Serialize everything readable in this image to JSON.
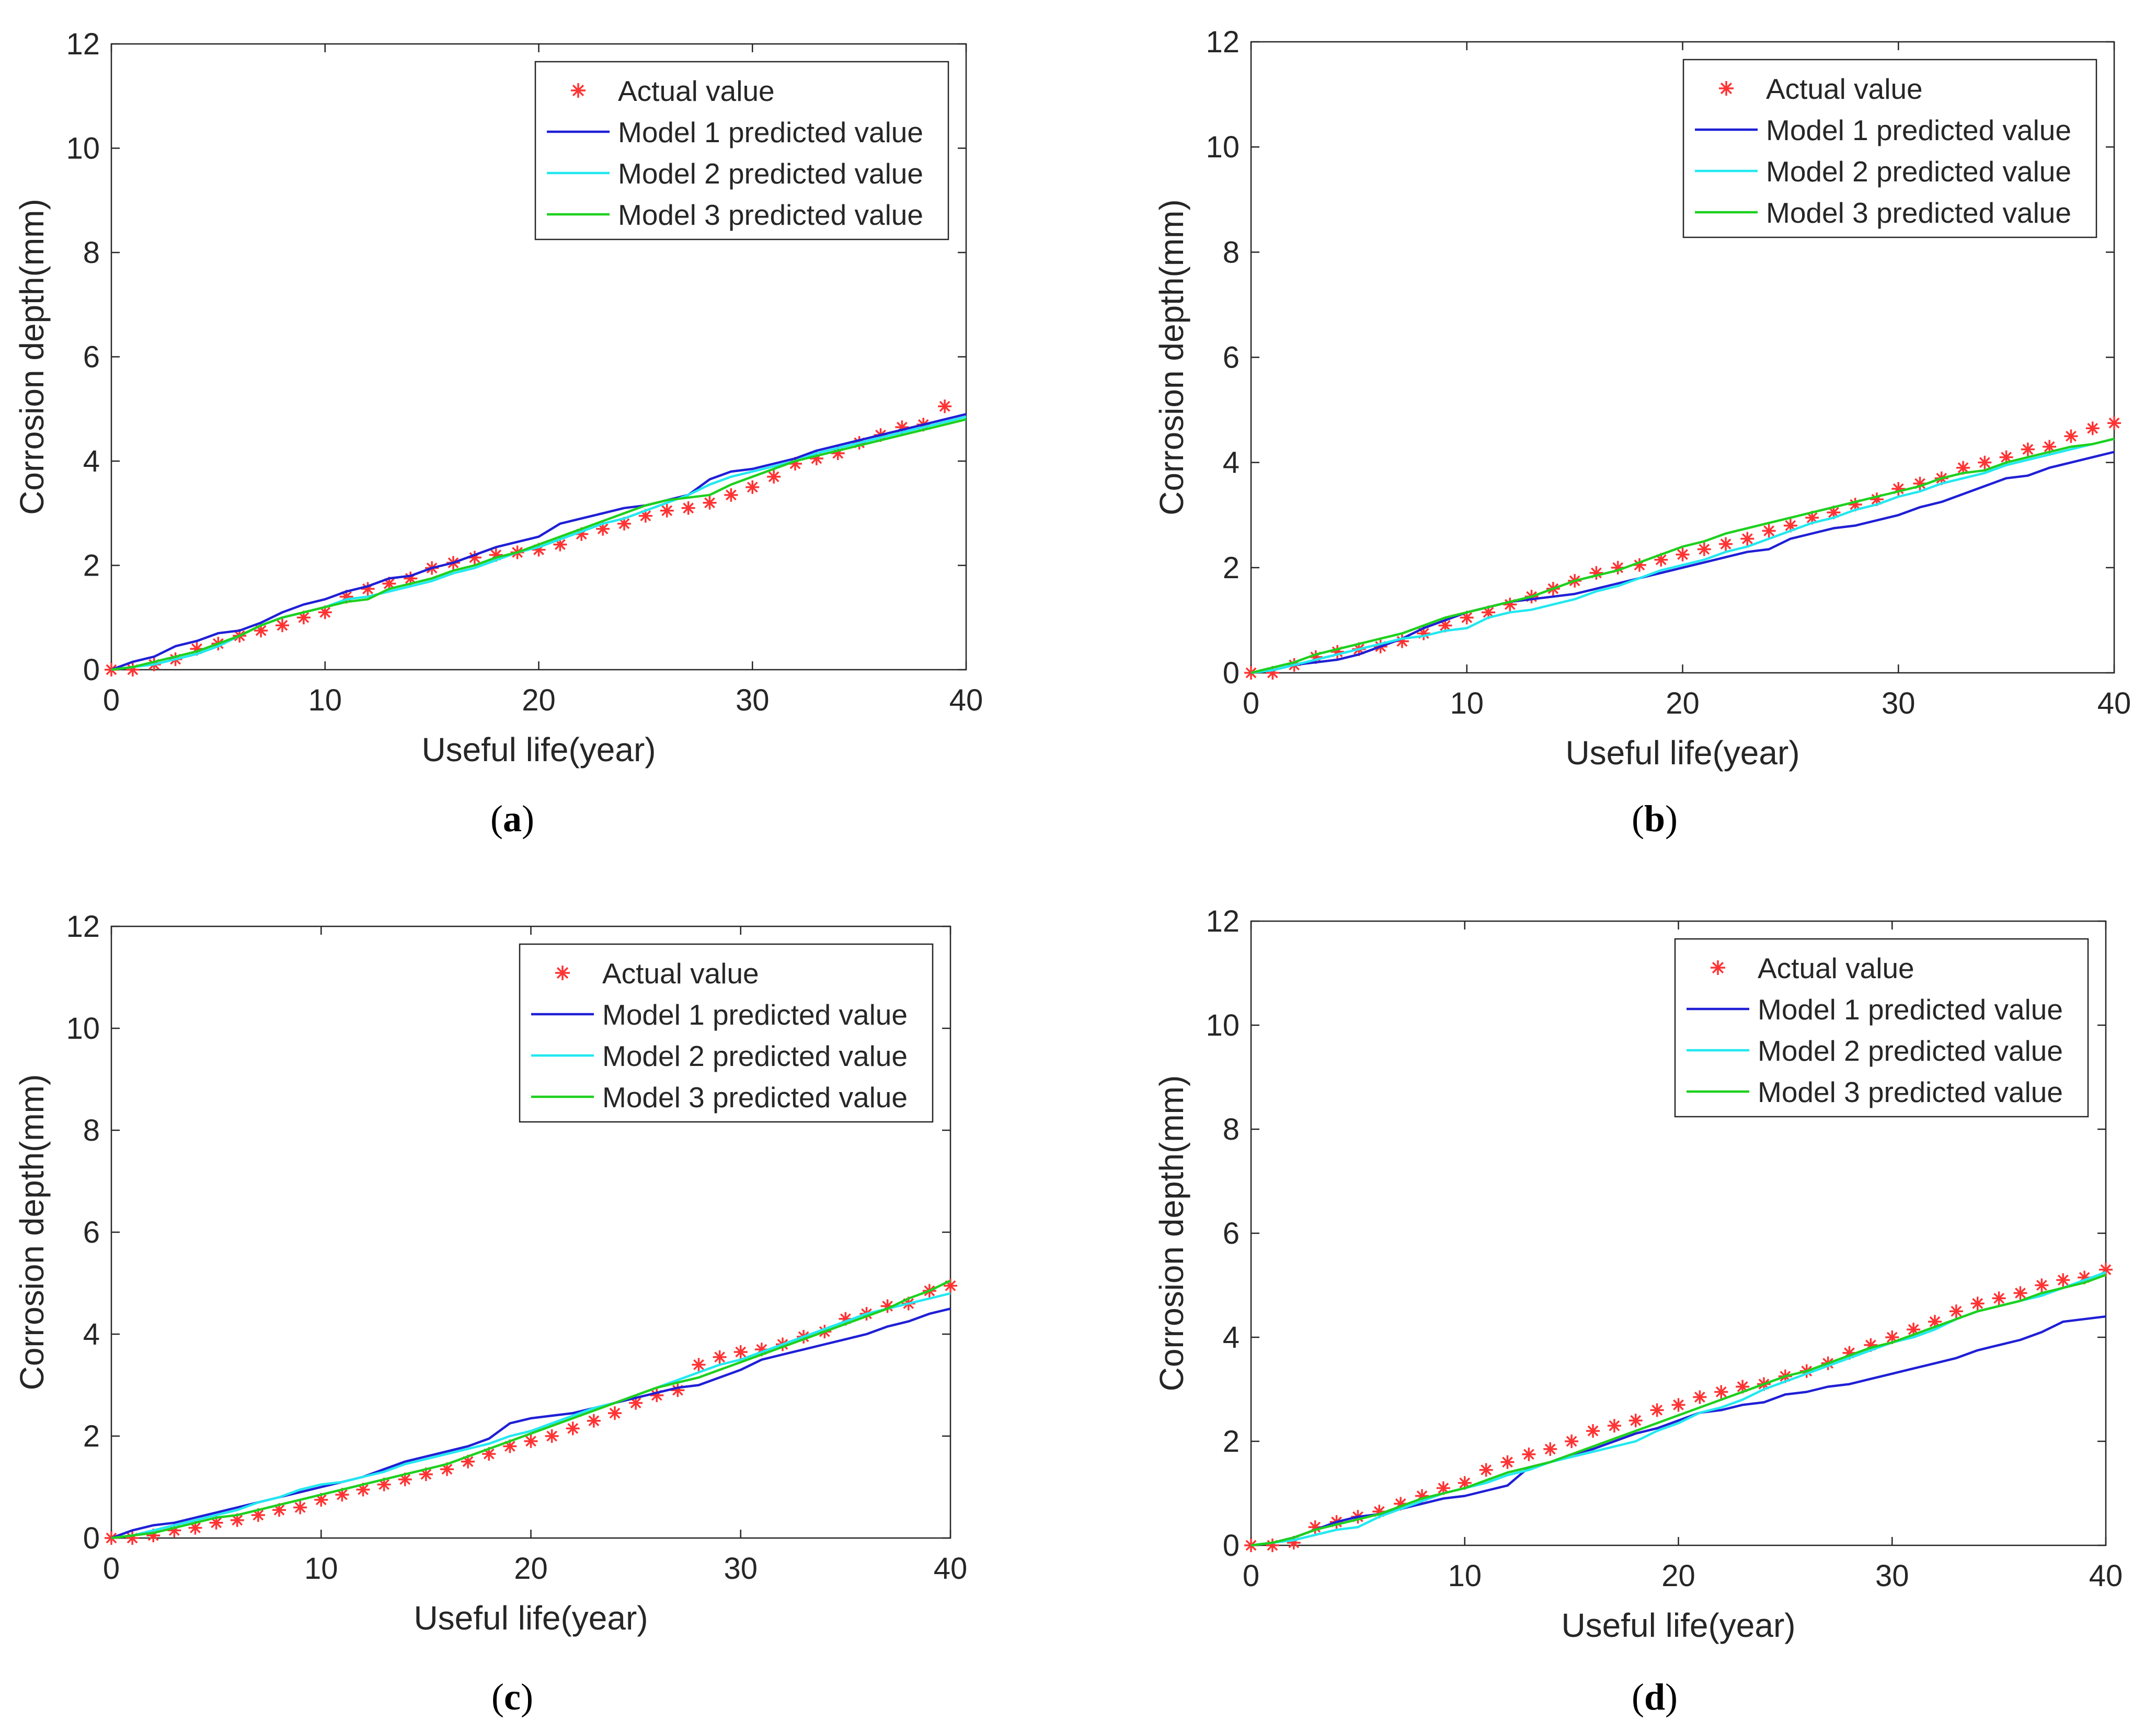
{
  "figure": {
    "panels": [
      {
        "id": "a",
        "label_open": "(",
        "label_letter": "a",
        "label_close": ")"
      },
      {
        "id": "b",
        "label_open": "(",
        "label_letter": "b",
        "label_close": ")"
      },
      {
        "id": "c",
        "label_open": "(",
        "label_letter": "c",
        "label_close": ")"
      },
      {
        "id": "d",
        "label_open": "(",
        "label_letter": "d",
        "label_close": ")"
      }
    ]
  },
  "colors": {
    "actual": "#ff3333",
    "model1": "#1f1fd6",
    "model2": "#22e8f0",
    "model3": "#1ed01e",
    "axis": "#262626"
  },
  "chart_data": [
    {
      "panel": "a",
      "type": "line",
      "xlabel": "Useful life(year)",
      "ylabel": "Corrosion depth(mm)",
      "xlim": [
        0,
        40
      ],
      "ylim": [
        0,
        12
      ],
      "xticks": [
        0,
        10,
        20,
        30,
        40
      ],
      "yticks": [
        0,
        2,
        4,
        6,
        8,
        10,
        12
      ],
      "legend_position": "top-right",
      "x": [
        0,
        1,
        2,
        3,
        4,
        5,
        6,
        7,
        8,
        9,
        10,
        11,
        12,
        13,
        14,
        15,
        16,
        17,
        18,
        19,
        20,
        21,
        22,
        23,
        24,
        25,
        26,
        27,
        28,
        29,
        30,
        31,
        32,
        33,
        34,
        35,
        36,
        37,
        38,
        39,
        40
      ],
      "series": [
        {
          "name": "Actual value",
          "style": "markers",
          "color_key": "actual",
          "values": [
            0,
            0,
            0.1,
            0.2,
            0.4,
            0.5,
            0.65,
            0.75,
            0.85,
            1.0,
            1.1,
            1.4,
            1.55,
            1.65,
            1.75,
            1.95,
            2.05,
            2.15,
            2.2,
            2.25,
            2.3,
            2.4,
            2.6,
            2.7,
            2.8,
            2.95,
            3.05,
            3.1,
            3.2,
            3.35,
            3.5,
            3.7,
            3.95,
            4.05,
            4.15,
            4.35,
            4.5,
            4.65,
            4.7,
            5.05,
            null
          ]
        },
        {
          "name": "Model 1 predicted value",
          "style": "line",
          "color_key": "model1",
          "values": [
            0,
            0.15,
            0.25,
            0.45,
            0.55,
            0.7,
            0.75,
            0.9,
            1.1,
            1.25,
            1.35,
            1.5,
            1.6,
            1.75,
            1.8,
            1.95,
            2.05,
            2.2,
            2.35,
            2.45,
            2.55,
            2.8,
            2.9,
            3.0,
            3.1,
            3.15,
            3.25,
            3.35,
            3.65,
            3.8,
            3.85,
            3.95,
            4.05,
            4.2,
            4.3,
            4.4,
            4.5,
            4.6,
            4.7,
            4.8,
            4.9
          ]
        },
        {
          "name": "Model 2 predicted value",
          "style": "line",
          "color_key": "model2",
          "values": [
            0,
            0.05,
            0.1,
            0.2,
            0.3,
            0.45,
            0.65,
            0.85,
            1.0,
            1.1,
            1.2,
            1.35,
            1.4,
            1.5,
            1.6,
            1.7,
            1.85,
            1.95,
            2.1,
            2.25,
            2.35,
            2.5,
            2.65,
            2.8,
            2.9,
            3.05,
            3.2,
            3.35,
            3.55,
            3.7,
            3.8,
            3.9,
            4.0,
            4.15,
            4.25,
            4.35,
            4.45,
            4.55,
            4.65,
            4.75,
            4.85
          ]
        },
        {
          "name": "Model 3 predicted value",
          "style": "line",
          "color_key": "model3",
          "values": [
            0,
            0.05,
            0.15,
            0.25,
            0.35,
            0.5,
            0.65,
            0.85,
            1.0,
            1.1,
            1.2,
            1.3,
            1.35,
            1.55,
            1.65,
            1.75,
            1.9,
            2.0,
            2.15,
            2.25,
            2.4,
            2.55,
            2.7,
            2.85,
            3.0,
            3.15,
            3.25,
            3.3,
            3.35,
            3.55,
            3.7,
            3.85,
            4.0,
            4.1,
            4.2,
            4.3,
            4.4,
            4.5,
            4.6,
            4.7,
            4.8
          ]
        }
      ]
    },
    {
      "panel": "b",
      "type": "line",
      "xlabel": "Useful life(year)",
      "ylabel": "Corrosion depth(mm)",
      "xlim": [
        0,
        40
      ],
      "ylim": [
        0,
        12
      ],
      "xticks": [
        0,
        10,
        20,
        30,
        40
      ],
      "yticks": [
        0,
        2,
        4,
        6,
        8,
        10,
        12
      ],
      "legend_position": "top-right",
      "x": [
        0,
        1,
        2,
        3,
        4,
        5,
        6,
        7,
        8,
        9,
        10,
        11,
        12,
        13,
        14,
        15,
        16,
        17,
        18,
        19,
        20,
        21,
        22,
        23,
        24,
        25,
        26,
        27,
        28,
        29,
        30,
        31,
        32,
        33,
        34,
        35,
        36,
        37,
        38,
        39,
        40
      ],
      "series": [
        {
          "name": "Actual value",
          "style": "markers",
          "color_key": "actual",
          "values": [
            0,
            0,
            0.15,
            0.3,
            0.4,
            0.45,
            0.5,
            0.6,
            0.75,
            0.9,
            1.05,
            1.15,
            1.3,
            1.45,
            1.6,
            1.75,
            1.9,
            2.0,
            2.05,
            2.15,
            2.25,
            2.35,
            2.45,
            2.55,
            2.7,
            2.8,
            2.95,
            3.05,
            3.2,
            3.3,
            3.5,
            3.6,
            3.7,
            3.9,
            4.0,
            4.1,
            4.25,
            4.3,
            4.5,
            4.65,
            4.75
          ]
        },
        {
          "name": "Model 1 predicted value",
          "style": "line",
          "color_key": "model1",
          "values": [
            0,
            0.05,
            0.15,
            0.2,
            0.25,
            0.35,
            0.5,
            0.65,
            0.85,
            1.0,
            1.15,
            1.25,
            1.35,
            1.4,
            1.45,
            1.5,
            1.6,
            1.7,
            1.8,
            1.9,
            2.0,
            2.1,
            2.2,
            2.3,
            2.35,
            2.55,
            2.65,
            2.75,
            2.8,
            2.9,
            3.0,
            3.15,
            3.25,
            3.4,
            3.55,
            3.7,
            3.75,
            3.9,
            4.0,
            4.1,
            4.2
          ]
        },
        {
          "name": "Model 2 predicted value",
          "style": "line",
          "color_key": "model2",
          "values": [
            0,
            0.05,
            0.15,
            0.25,
            0.35,
            0.45,
            0.55,
            0.65,
            0.7,
            0.8,
            0.85,
            1.05,
            1.15,
            1.2,
            1.3,
            1.4,
            1.55,
            1.65,
            1.8,
            1.95,
            2.05,
            2.15,
            2.3,
            2.4,
            2.55,
            2.7,
            2.85,
            2.95,
            3.1,
            3.2,
            3.35,
            3.45,
            3.6,
            3.7,
            3.8,
            3.95,
            4.05,
            4.15,
            4.25,
            4.35,
            4.45
          ]
        },
        {
          "name": "Model 3 predicted value",
          "style": "line",
          "color_key": "model3",
          "values": [
            0,
            0.1,
            0.2,
            0.35,
            0.45,
            0.55,
            0.65,
            0.75,
            0.9,
            1.05,
            1.15,
            1.25,
            1.35,
            1.45,
            1.6,
            1.75,
            1.85,
            1.95,
            2.1,
            2.25,
            2.4,
            2.5,
            2.65,
            2.75,
            2.85,
            2.95,
            3.05,
            3.15,
            3.25,
            3.35,
            3.45,
            3.55,
            3.7,
            3.8,
            3.85,
            4.0,
            4.1,
            4.2,
            4.3,
            4.35,
            4.45
          ]
        }
      ]
    },
    {
      "panel": "c",
      "type": "line",
      "xlabel": "Useful life(year)",
      "ylabel": "Corrosion depth(mm)",
      "xlim": [
        0,
        40
      ],
      "ylim": [
        0,
        12
      ],
      "xticks": [
        0,
        10,
        20,
        30,
        40
      ],
      "yticks": [
        0,
        2,
        4,
        6,
        8,
        10,
        12
      ],
      "legend_position": "top-right",
      "x": [
        0,
        1,
        2,
        3,
        4,
        5,
        6,
        7,
        8,
        9,
        10,
        11,
        12,
        13,
        14,
        15,
        16,
        17,
        18,
        19,
        20,
        21,
        22,
        23,
        24,
        25,
        26,
        27,
        28,
        29,
        30,
        31,
        32,
        33,
        34,
        35,
        36,
        37,
        38,
        39,
        40
      ],
      "series": [
        {
          "name": "Actual value",
          "style": "markers",
          "color_key": "actual",
          "values": [
            0,
            0,
            0.05,
            0.15,
            0.2,
            0.3,
            0.35,
            0.45,
            0.55,
            0.6,
            0.75,
            0.85,
            0.95,
            1.05,
            1.15,
            1.25,
            1.35,
            1.5,
            1.65,
            1.8,
            1.9,
            2.0,
            2.15,
            2.3,
            2.45,
            2.65,
            2.8,
            2.9,
            3.4,
            3.55,
            3.65,
            3.7,
            3.8,
            3.95,
            4.05,
            4.3,
            4.4,
            4.55,
            4.6,
            4.85,
            4.95
          ]
        },
        {
          "name": "Model 1 predicted value",
          "style": "line",
          "color_key": "model1",
          "values": [
            0,
            0.15,
            0.25,
            0.3,
            0.4,
            0.5,
            0.6,
            0.7,
            0.8,
            0.9,
            1.0,
            1.1,
            1.2,
            1.35,
            1.5,
            1.6,
            1.7,
            1.8,
            1.95,
            2.25,
            2.35,
            2.4,
            2.45,
            2.55,
            2.65,
            2.75,
            2.85,
            2.95,
            3.0,
            3.15,
            3.3,
            3.5,
            3.6,
            3.7,
            3.8,
            3.9,
            4.0,
            4.15,
            4.25,
            4.4,
            4.5
          ]
        },
        {
          "name": "Model 2 predicted value",
          "style": "line",
          "color_key": "model2",
          "values": [
            0,
            0.05,
            0.15,
            0.25,
            0.35,
            0.45,
            0.55,
            0.7,
            0.8,
            0.95,
            1.05,
            1.1,
            1.2,
            1.3,
            1.45,
            1.55,
            1.65,
            1.75,
            1.85,
            2.0,
            2.1,
            2.25,
            2.4,
            2.55,
            2.65,
            2.8,
            2.95,
            3.1,
            3.25,
            3.4,
            3.5,
            3.65,
            3.8,
            3.95,
            4.1,
            4.25,
            4.4,
            4.5,
            4.6,
            4.7,
            4.8
          ]
        },
        {
          "name": "Model 3 predicted value",
          "style": "line",
          "color_key": "model3",
          "values": [
            0,
            0.05,
            0.1,
            0.2,
            0.3,
            0.4,
            0.45,
            0.55,
            0.65,
            0.75,
            0.85,
            0.95,
            1.05,
            1.15,
            1.25,
            1.35,
            1.45,
            1.6,
            1.75,
            1.9,
            2.05,
            2.2,
            2.35,
            2.5,
            2.65,
            2.8,
            2.95,
            3.05,
            3.15,
            3.3,
            3.45,
            3.6,
            3.75,
            3.9,
            4.05,
            4.2,
            4.35,
            4.5,
            4.7,
            4.85,
            5.05
          ]
        }
      ]
    },
    {
      "panel": "d",
      "type": "line",
      "xlabel": "Useful life(year)",
      "ylabel": "Corrosion depth(mm)",
      "xlim": [
        0,
        40
      ],
      "ylim": [
        0,
        12
      ],
      "xticks": [
        0,
        10,
        20,
        30,
        40
      ],
      "yticks": [
        0,
        2,
        4,
        6,
        8,
        10,
        12
      ],
      "legend_position": "top-right",
      "x": [
        0,
        1,
        2,
        3,
        4,
        5,
        6,
        7,
        8,
        9,
        10,
        11,
        12,
        13,
        14,
        15,
        16,
        17,
        18,
        19,
        20,
        21,
        22,
        23,
        24,
        25,
        26,
        27,
        28,
        29,
        30,
        31,
        32,
        33,
        34,
        35,
        36,
        37,
        38,
        39,
        40
      ],
      "series": [
        {
          "name": "Actual value",
          "style": "markers",
          "color_key": "actual",
          "values": [
            0,
            0,
            0.05,
            0.35,
            0.45,
            0.55,
            0.65,
            0.8,
            0.95,
            1.1,
            1.2,
            1.45,
            1.6,
            1.75,
            1.85,
            2.0,
            2.2,
            2.3,
            2.4,
            2.6,
            2.7,
            2.85,
            2.95,
            3.05,
            3.1,
            3.25,
            3.35,
            3.5,
            3.7,
            3.85,
            4.0,
            4.15,
            4.3,
            4.5,
            4.65,
            4.75,
            4.85,
            5.0,
            5.1,
            5.15,
            5.3
          ]
        },
        {
          "name": "Model 1 predicted value",
          "style": "line",
          "color_key": "model1",
          "values": [
            0,
            0.05,
            0.15,
            0.3,
            0.45,
            0.55,
            0.6,
            0.7,
            0.8,
            0.9,
            0.95,
            1.05,
            1.15,
            1.5,
            1.6,
            1.75,
            1.85,
            2.0,
            2.15,
            2.25,
            2.4,
            2.55,
            2.6,
            2.7,
            2.75,
            2.9,
            2.95,
            3.05,
            3.1,
            3.2,
            3.3,
            3.4,
            3.5,
            3.6,
            3.75,
            3.85,
            3.95,
            4.1,
            4.3,
            4.35,
            4.4
          ]
        },
        {
          "name": "Model 2 predicted value",
          "style": "line",
          "color_key": "model2",
          "values": [
            0,
            0.05,
            0.1,
            0.2,
            0.3,
            0.35,
            0.55,
            0.7,
            0.85,
            1.0,
            1.1,
            1.2,
            1.35,
            1.45,
            1.6,
            1.7,
            1.8,
            1.9,
            2.0,
            2.2,
            2.35,
            2.55,
            2.65,
            2.8,
            3.0,
            3.15,
            3.3,
            3.45,
            3.6,
            3.75,
            3.9,
            4.0,
            4.15,
            4.35,
            4.5,
            4.6,
            4.7,
            4.8,
            4.95,
            5.1,
            5.25
          ]
        },
        {
          "name": "Model 3 predicted value",
          "style": "line",
          "color_key": "model3",
          "values": [
            0,
            0.05,
            0.15,
            0.3,
            0.4,
            0.5,
            0.6,
            0.75,
            0.9,
            1.0,
            1.1,
            1.25,
            1.4,
            1.5,
            1.6,
            1.75,
            1.9,
            2.05,
            2.2,
            2.35,
            2.5,
            2.65,
            2.8,
            2.95,
            3.1,
            3.25,
            3.35,
            3.5,
            3.65,
            3.8,
            3.9,
            4.05,
            4.2,
            4.35,
            4.5,
            4.6,
            4.7,
            4.85,
            4.95,
            5.05,
            5.2
          ]
        }
      ]
    }
  ]
}
